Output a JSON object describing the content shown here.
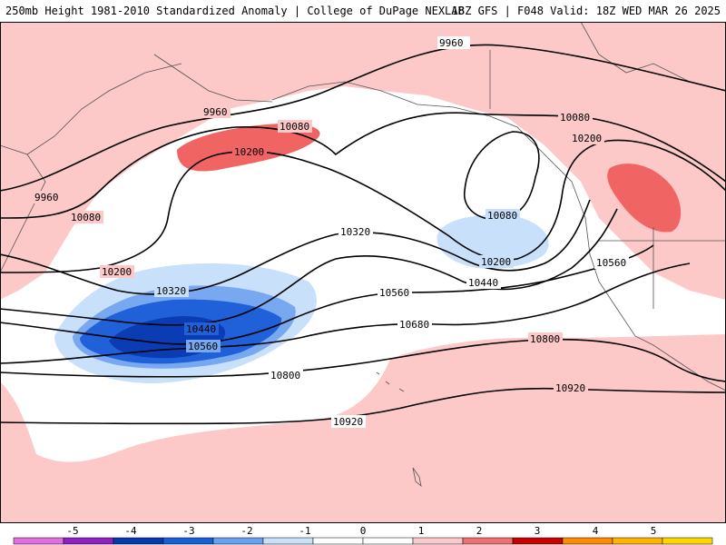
{
  "header": {
    "title_left": "250mb Height 1981-2010 Standardized Anomaly | College of DuPage NEXLAB",
    "title_right": "18Z GFS | F048 Valid: 18Z WED MAR 26 2025"
  },
  "colors": {
    "land_outline": "#555555",
    "contour": "#000000",
    "a_pos1": "#fcc8c8",
    "a_pos2": "#f06464",
    "a_neg1": "#c8e0fa",
    "a_neg2": "#78a8f0",
    "a_neg3": "#2060d8",
    "a_neg4": "#0a3cb4"
  },
  "colorbar": {
    "labels": [
      "-5",
      "-4",
      "-3",
      "-2",
      "-1",
      "0",
      "1",
      "2",
      "3",
      "4",
      "5"
    ],
    "colors": [
      "#e070e0",
      "#9020c0",
      "#0838b0",
      "#1860d8",
      "#6aa0f0",
      "#c8e0fa",
      "#ffffff",
      "#ffffff",
      "#fcc8c8",
      "#f07070",
      "#c80000",
      "#ff8c00",
      "#ffb400",
      "#ffd700"
    ]
  },
  "contours": [
    {
      "label": "9960"
    },
    {
      "label": "10080"
    },
    {
      "label": "10200"
    },
    {
      "label": "10320"
    },
    {
      "label": "10440"
    },
    {
      "label": "10560"
    },
    {
      "label": "10680"
    },
    {
      "label": "10800"
    },
    {
      "label": "10920"
    }
  ]
}
